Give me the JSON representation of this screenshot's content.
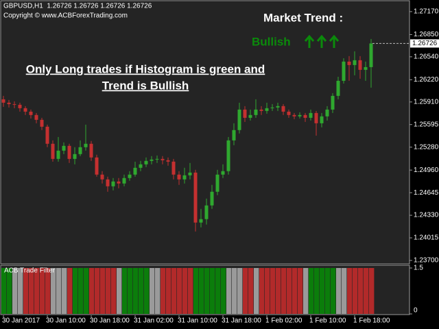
{
  "chart_data": [
    {
      "type": "candlestick",
      "title": "GBPUSD,H1  1.26726 1.26726 1.26726 1.26726",
      "subtitle": "Copyright © www.ACBForexTrading.com",
      "annotations": [
        "Market Trend :",
        "Bullish",
        "Only Long trades if Histogram is green and",
        "Trend is Bullish"
      ],
      "current_price": 1.26726,
      "up_color": "#2fa82f",
      "down_color": "#c43030",
      "categories": [
        "30 Jan 2017",
        null,
        null,
        null,
        null,
        null,
        null,
        null,
        "30 Jan 10:00",
        null,
        null,
        null,
        null,
        null,
        null,
        null,
        "30 Jan 18:00",
        null,
        null,
        null,
        null,
        null,
        null,
        null,
        "31 Jan 02:00",
        null,
        null,
        null,
        null,
        null,
        null,
        null,
        "31 Jan 10:00",
        null,
        null,
        null,
        null,
        null,
        null,
        null,
        "31 Jan 18:00",
        null,
        null,
        null,
        null,
        null,
        null,
        null,
        "1 Feb 02:00",
        null,
        null,
        null,
        null,
        null,
        null,
        null,
        "1 Feb 10:00",
        null,
        null,
        null,
        null,
        null,
        null,
        null,
        "1 Feb 18:00",
        null,
        null,
        null
      ],
      "open": [
        1.25947,
        1.259,
        1.2588,
        1.25871,
        1.25823,
        1.25775,
        1.25728,
        1.25661,
        1.25565,
        1.25327,
        1.25116,
        1.25231,
        1.25298,
        1.25116,
        1.25183,
        1.25279,
        1.25327,
        1.25136,
        1.24897,
        1.2483,
        1.24734,
        1.24801,
        1.24773,
        1.24849,
        1.24897,
        1.24992,
        1.2504,
        1.25088,
        1.25107,
        1.25116,
        1.25097,
        1.25078,
        1.24897,
        1.2483,
        1.24887,
        1.24925,
        1.24228,
        1.24276,
        1.24467,
        1.24658,
        1.24897,
        1.24945,
        1.25374,
        1.25518,
        1.25804,
        1.25689,
        1.25728,
        1.25804,
        1.25785,
        1.25823,
        1.25833,
        1.25852,
        1.25775,
        1.25728,
        1.25709,
        1.25728,
        1.25689,
        1.25756,
        1.25613,
        1.25709,
        1.25804,
        1.25995,
        1.26205,
        1.26473,
        1.26425,
        1.26492,
        1.26358,
        1.26396
      ],
      "high": [
        1.25995,
        1.25938,
        1.25919,
        1.259,
        1.25852,
        1.25804,
        1.25756,
        1.25689,
        1.25594,
        1.25374,
        1.25422,
        1.25346,
        1.25327,
        1.25279,
        1.25374,
        1.25594,
        1.25365,
        1.25174,
        1.24945,
        1.24868,
        1.24849,
        1.24849,
        1.24897,
        1.24945,
        1.25078,
        1.25088,
        1.25136,
        1.25155,
        1.25164,
        1.25155,
        1.25136,
        1.25116,
        1.24945,
        1.24992,
        1.25059,
        1.24964,
        1.24419,
        1.24563,
        1.24754,
        1.24964,
        1.2504,
        1.25422,
        1.25613,
        1.259,
        1.25852,
        1.25804,
        1.25947,
        1.25852,
        1.259,
        1.2588,
        1.259,
        1.2588,
        1.25804,
        1.25756,
        1.25766,
        1.25756,
        1.25804,
        1.25785,
        1.25756,
        1.25852,
        1.26033,
        1.26262,
        1.2652,
        1.26549,
        1.26616,
        1.26549,
        1.26473,
        1.26788
      ],
      "low": [
        1.25842,
        1.25833,
        1.25823,
        1.25775,
        1.25728,
        1.2568,
        1.25613,
        1.25518,
        1.25279,
        1.25078,
        1.25078,
        1.25183,
        1.25059,
        1.2504,
        1.25155,
        1.25231,
        1.25088,
        1.24868,
        1.24773,
        1.24658,
        1.24677,
        1.24706,
        1.24734,
        1.24811,
        1.24868,
        1.24945,
        1.25002,
        1.2504,
        1.25059,
        1.2504,
        1.25021,
        1.2483,
        1.24754,
        1.24773,
        1.2483,
        1.24104,
        1.24161,
        1.242,
        1.24419,
        1.2461,
        1.24849,
        1.24897,
        1.25307,
        1.2547,
        1.25632,
        1.25651,
        1.25689,
        1.25728,
        1.25747,
        1.25785,
        1.25785,
        1.25728,
        1.25689,
        1.2567,
        1.2568,
        1.25632,
        1.25651,
        1.25441,
        1.25556,
        1.25651,
        1.25756,
        1.25947,
        1.26167,
        1.26205,
        1.26282,
        1.26234,
        1.26205,
        1.2611
      ],
      "close": [
        1.259,
        1.2588,
        1.25871,
        1.25823,
        1.25775,
        1.25728,
        1.25661,
        1.25565,
        1.25327,
        1.25116,
        1.25231,
        1.25298,
        1.25116,
        1.25183,
        1.25279,
        1.25327,
        1.25136,
        1.24897,
        1.2483,
        1.24734,
        1.24801,
        1.24773,
        1.24849,
        1.24897,
        1.24992,
        1.2504,
        1.25088,
        1.25107,
        1.25116,
        1.25097,
        1.25078,
        1.24897,
        1.2483,
        1.24887,
        1.24925,
        1.24228,
        1.24276,
        1.24467,
        1.24658,
        1.24897,
        1.24945,
        1.25374,
        1.25518,
        1.25804,
        1.25689,
        1.25728,
        1.25804,
        1.25785,
        1.25823,
        1.25833,
        1.25852,
        1.25775,
        1.25728,
        1.25709,
        1.25728,
        1.25689,
        1.25756,
        1.25613,
        1.25709,
        1.25804,
        1.25995,
        1.26205,
        1.26473,
        1.26425,
        1.26492,
        1.26358,
        1.26396,
        1.26726
      ],
      "ylim": [
        1.23652,
        1.27332
      ],
      "yticks": [
        {
          "value": 1.2717,
          "label": "1.27170"
        },
        {
          "value": 1.2685,
          "label": "1.26850"
        },
        {
          "value": 1.2654,
          "label": "1.26540"
        },
        {
          "value": 1.2622,
          "label": "1.26220"
        },
        {
          "value": 1.2591,
          "label": "1.25910"
        },
        1.25595,
        {
          "value": 1.2528,
          "label": "1.25280"
        },
        {
          "value": 1.2496,
          "label": "1.24960"
        },
        1.24645,
        {
          "value": 1.2433,
          "label": "1.24330"
        },
        1.24015,
        {
          "value": 1.237,
          "label": "1.23700"
        }
      ],
      "grid": false
    },
    {
      "type": "bar",
      "title": "ACB Trade Filter",
      "values": [
        1.5,
        1.5,
        1.5,
        1.5,
        1.5,
        1.5,
        1.5,
        1.5,
        1.5,
        1.5,
        1.5,
        1.5,
        1.5,
        1.5,
        1.5,
        1.5,
        1.5,
        1.5,
        1.5,
        1.5,
        1.5,
        1.5,
        1.5,
        1.5,
        1.5,
        1.5,
        1.5,
        1.5,
        1.5,
        1.5,
        1.5,
        1.5,
        1.5,
        1.5,
        1.5,
        1.5,
        1.5,
        1.5,
        1.5,
        1.5,
        1.5,
        1.5,
        1.5,
        1.5,
        1.5,
        1.5,
        1.5,
        1.5,
        1.5,
        1.5,
        1.5,
        1.5,
        1.5,
        1.5,
        1.5,
        1.5,
        1.5,
        1.5,
        1.5,
        1.5,
        1.5,
        1.5,
        1.5,
        1.5,
        1.5,
        1.5,
        1.5,
        1.5
      ],
      "colors": [
        "#0b7d0b",
        "#0b7d0b",
        "#9a9a9a",
        "#9a9a9a",
        "#b22a2a",
        "#b22a2a",
        "#b22a2a",
        "#b22a2a",
        "#b22a2a",
        "#9a9a9a",
        "#9a9a9a",
        "#9a9a9a",
        "#b22a2a",
        "#0b7d0b",
        "#0b7d0b",
        "#0b7d0b",
        "#b22a2a",
        "#b22a2a",
        "#b22a2a",
        "#b22a2a",
        "#b22a2a",
        "#9a9a9a",
        "#0b7d0b",
        "#0b7d0b",
        "#0b7d0b",
        "#0b7d0b",
        "#0b7d0b",
        "#9a9a9a",
        "#9a9a9a",
        "#b22a2a",
        "#b22a2a",
        "#b22a2a",
        "#b22a2a",
        "#b22a2a",
        "#b22a2a",
        "#0b7d0b",
        "#0b7d0b",
        "#0b7d0b",
        "#0b7d0b",
        "#0b7d0b",
        "#0b7d0b",
        "#9a9a9a",
        "#9a9a9a",
        "#9a9a9a",
        "#b22a2a",
        "#b22a2a",
        "#9a9a9a",
        "#b22a2a",
        "#b22a2a",
        "#b22a2a",
        "#b22a2a",
        "#b22a2a",
        "#b22a2a",
        "#b22a2a",
        "#b22a2a",
        "#9a9a9a",
        "#0b7d0b",
        "#0b7d0b",
        "#0b7d0b",
        "#0b7d0b",
        "#0b7d0b",
        "#9a9a9a",
        "#9a9a9a",
        "#b22a2a",
        "#b22a2a",
        "#b22a2a",
        "#b22a2a",
        "#b22a2a"
      ],
      "ylim": [
        0,
        1.5
      ],
      "yticks": [
        0,
        1.5
      ]
    }
  ]
}
